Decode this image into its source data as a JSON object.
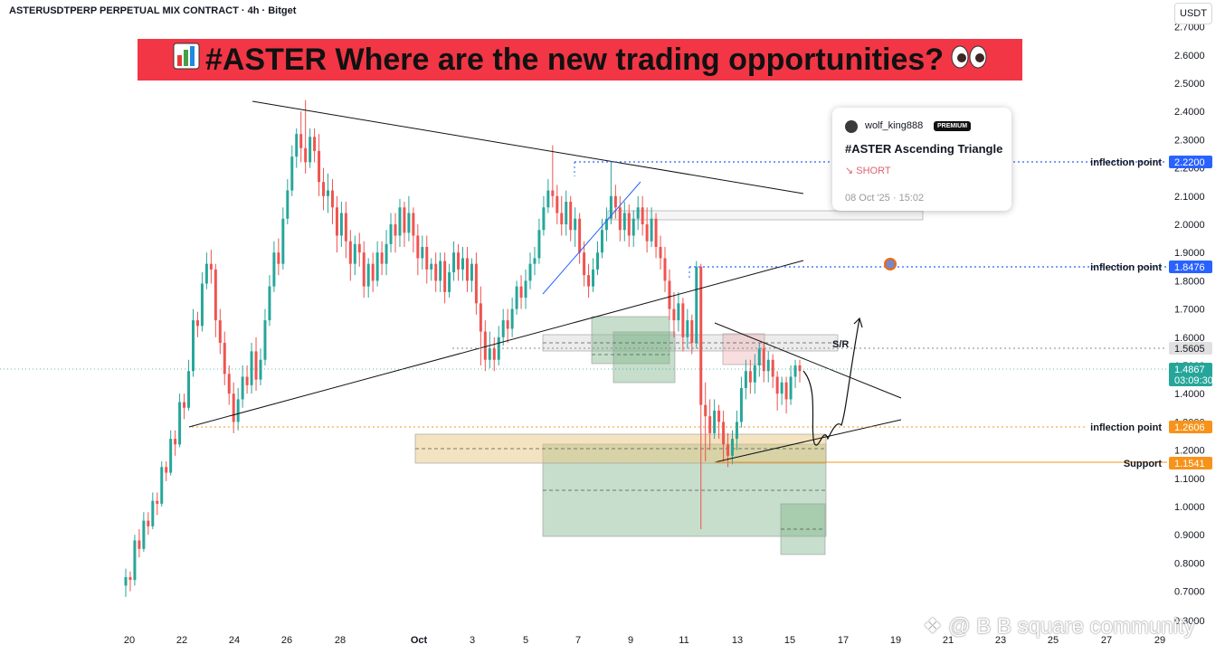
{
  "header": {
    "symbol": "ASTERUSDTPERP PERPETUAL MIX CONTRACT · 4h · Bitget",
    "currency_button": "USDT"
  },
  "banner": {
    "text": "#ASTER Where are the new trading opportunities?",
    "icon": "bar-chart-icon",
    "emoji": "eyes-emoji",
    "bg": "#f23645"
  },
  "idea_card": {
    "author": "wolf_king888",
    "badge": "PREMIUM",
    "title": "#ASTER Ascending Triangle",
    "direction": "↘ SHORT",
    "date": "08 Oct '25 · 15:02"
  },
  "watermark": "❖ @ B B square community",
  "chart_data": {
    "type": "candlestick",
    "title": "",
    "ylim": [
      0.3,
      2.7
    ],
    "yticks": [
      "0.3000",
      "0.7000",
      "0.8000",
      "0.9000",
      "1.0000",
      "1.1000",
      "1.2000",
      "1.3000",
      "1.4000",
      "1.5000",
      "1.6000",
      "1.7000",
      "1.8000",
      "1.9000",
      "2.0000",
      "2.1000",
      "2.2000",
      "2.3000",
      "2.4000",
      "2.5000",
      "2.6000",
      "2.7000"
    ],
    "xticks": [
      "20",
      "22",
      "24",
      "26",
      "28",
      "Oct",
      "3",
      "5",
      "7",
      "9",
      "11",
      "13",
      "15",
      "17",
      "19",
      "21",
      "23",
      "25",
      "27",
      "29"
    ],
    "price_levels": [
      {
        "label": "inflection point",
        "value": "2.2200",
        "color": "#2962ff"
      },
      {
        "label": "inflection point",
        "value": "1.8476",
        "color": "#2962ff"
      },
      {
        "label": "",
        "value": "1.5605",
        "color": "#e0e0e0",
        "text_color": "#131722"
      },
      {
        "label": "",
        "value": "1.4867",
        "sub": "03:09:30",
        "color": "#26a69a"
      },
      {
        "label": "inflection point",
        "value": "1.2606",
        "color": "#f7931a"
      },
      {
        "label": "Support",
        "value": "1.1541",
        "color": "#f7931a"
      }
    ],
    "annotations": [
      "S/R"
    ],
    "colors": {
      "up": "#26a69a",
      "down": "#ef5350"
    },
    "candles": [
      [
        0.72,
        0.75,
        0.68,
        0.78
      ],
      [
        0.75,
        0.74,
        0.7,
        0.77
      ],
      [
        0.74,
        0.88,
        0.72,
        0.9
      ],
      [
        0.88,
        0.85,
        0.82,
        0.92
      ],
      [
        0.85,
        0.95,
        0.84,
        0.98
      ],
      [
        0.95,
        0.93,
        0.9,
        0.98
      ],
      [
        0.93,
        1.02,
        0.92,
        1.05
      ],
      [
        1.02,
        1.01,
        0.97,
        1.05
      ],
      [
        1.01,
        1.14,
        1.0,
        1.16
      ],
      [
        1.14,
        1.12,
        1.09,
        1.16
      ],
      [
        1.12,
        1.24,
        1.11,
        1.27
      ],
      [
        1.24,
        1.22,
        1.18,
        1.27
      ],
      [
        1.22,
        1.37,
        1.21,
        1.4
      ],
      [
        1.37,
        1.35,
        1.31,
        1.4
      ],
      [
        1.35,
        1.48,
        1.34,
        1.52
      ],
      [
        1.48,
        1.66,
        1.46,
        1.7
      ],
      [
        1.66,
        1.64,
        1.6,
        1.69
      ],
      [
        1.64,
        1.79,
        1.62,
        1.83
      ],
      [
        1.79,
        1.86,
        1.77,
        1.9
      ],
      [
        1.86,
        1.84,
        1.79,
        1.91
      ],
      [
        1.84,
        1.66,
        1.6,
        1.86
      ],
      [
        1.66,
        1.58,
        1.54,
        1.7
      ],
      [
        1.58,
        1.47,
        1.43,
        1.62
      ],
      [
        1.47,
        1.4,
        1.36,
        1.5
      ],
      [
        1.4,
        1.3,
        1.26,
        1.44
      ],
      [
        1.3,
        1.38,
        1.27,
        1.42
      ],
      [
        1.38,
        1.46,
        1.35,
        1.5
      ],
      [
        1.46,
        1.43,
        1.4,
        1.5
      ],
      [
        1.43,
        1.55,
        1.4,
        1.58
      ],
      [
        1.55,
        1.45,
        1.41,
        1.6
      ],
      [
        1.45,
        1.52,
        1.43,
        1.56
      ],
      [
        1.52,
        1.66,
        1.5,
        1.7
      ],
      [
        1.66,
        1.78,
        1.64,
        1.82
      ],
      [
        1.78,
        1.9,
        1.76,
        1.94
      ],
      [
        1.9,
        1.86,
        1.82,
        1.95
      ],
      [
        1.86,
        2.02,
        1.84,
        2.06
      ],
      [
        2.02,
        2.12,
        2.0,
        2.16
      ],
      [
        2.12,
        2.24,
        2.1,
        2.28
      ],
      [
        2.24,
        2.32,
        2.2,
        2.34
      ],
      [
        2.32,
        2.27,
        2.22,
        2.4
      ],
      [
        2.27,
        2.22,
        2.18,
        2.44
      ],
      [
        2.22,
        2.31,
        2.2,
        2.34
      ],
      [
        2.31,
        2.26,
        2.22,
        2.34
      ],
      [
        2.26,
        2.15,
        2.1,
        2.32
      ],
      [
        2.15,
        2.1,
        2.05,
        2.2
      ],
      [
        2.1,
        2.12,
        2.04,
        2.18
      ],
      [
        2.12,
        2.06,
        2.0,
        2.16
      ],
      [
        2.06,
        1.96,
        1.9,
        2.1
      ],
      [
        1.96,
        2.04,
        1.92,
        2.08
      ],
      [
        2.04,
        1.94,
        1.88,
        2.08
      ],
      [
        1.94,
        1.86,
        1.8,
        1.98
      ],
      [
        1.86,
        1.93,
        1.82,
        1.96
      ],
      [
        1.93,
        1.9,
        1.85,
        1.97
      ],
      [
        1.9,
        1.78,
        1.74,
        1.94
      ],
      [
        1.78,
        1.86,
        1.74,
        1.88
      ],
      [
        1.86,
        1.8,
        1.76,
        1.9
      ],
      [
        1.8,
        1.9,
        1.78,
        1.94
      ],
      [
        1.9,
        1.86,
        1.82,
        1.94
      ],
      [
        1.86,
        1.93,
        1.82,
        1.98
      ],
      [
        1.93,
        2.0,
        1.9,
        2.04
      ],
      [
        2.0,
        1.96,
        1.9,
        2.04
      ],
      [
        1.96,
        2.06,
        1.92,
        2.09
      ],
      [
        2.06,
        1.97,
        1.92,
        2.08
      ],
      [
        1.97,
        2.04,
        1.94,
        2.1
      ],
      [
        2.04,
        1.96,
        1.9,
        2.06
      ],
      [
        1.96,
        1.88,
        1.82,
        2.0
      ],
      [
        1.88,
        1.92,
        1.84,
        1.96
      ],
      [
        1.92,
        1.84,
        1.79,
        1.96
      ],
      [
        1.84,
        1.86,
        1.8,
        1.88
      ],
      [
        1.86,
        1.8,
        1.76,
        1.9
      ],
      [
        1.8,
        1.87,
        1.76,
        1.9
      ],
      [
        1.87,
        1.76,
        1.72,
        1.9
      ],
      [
        1.76,
        1.83,
        1.74,
        1.86
      ],
      [
        1.83,
        1.9,
        1.8,
        1.94
      ],
      [
        1.9,
        1.84,
        1.8,
        1.93
      ],
      [
        1.84,
        1.88,
        1.8,
        1.92
      ],
      [
        1.88,
        1.8,
        1.76,
        1.92
      ],
      [
        1.8,
        1.86,
        1.76,
        1.88
      ],
      [
        1.86,
        1.72,
        1.68,
        1.9
      ],
      [
        1.72,
        1.62,
        1.5,
        1.78
      ],
      [
        1.62,
        1.52,
        1.48,
        1.66
      ],
      [
        1.52,
        1.56,
        1.49,
        1.62
      ],
      [
        1.56,
        1.52,
        1.48,
        1.6
      ],
      [
        1.52,
        1.6,
        1.5,
        1.64
      ],
      [
        1.6,
        1.66,
        1.57,
        1.7
      ],
      [
        1.66,
        1.63,
        1.58,
        1.7
      ],
      [
        1.63,
        1.7,
        1.6,
        1.74
      ],
      [
        1.7,
        1.78,
        1.68,
        1.8
      ],
      [
        1.78,
        1.74,
        1.7,
        1.82
      ],
      [
        1.74,
        1.8,
        1.7,
        1.84
      ],
      [
        1.8,
        1.86,
        1.77,
        1.9
      ],
      [
        1.86,
        1.88,
        1.82,
        1.92
      ],
      [
        1.88,
        1.98,
        1.86,
        2.02
      ],
      [
        1.98,
        2.06,
        1.96,
        2.1
      ],
      [
        2.06,
        2.12,
        2.04,
        2.16
      ],
      [
        2.12,
        2.1,
        2.06,
        2.28
      ],
      [
        2.1,
        2.04,
        2.0,
        2.14
      ],
      [
        2.04,
        2.0,
        1.96,
        2.1
      ],
      [
        2.0,
        2.08,
        1.96,
        2.12
      ],
      [
        2.08,
        1.98,
        1.94,
        2.1
      ],
      [
        1.98,
        2.02,
        1.92,
        2.06
      ],
      [
        2.02,
        1.9,
        1.86,
        2.04
      ],
      [
        1.9,
        1.82,
        1.78,
        1.94
      ],
      [
        1.82,
        1.78,
        1.74,
        1.86
      ],
      [
        1.78,
        1.84,
        1.76,
        1.88
      ],
      [
        1.84,
        1.9,
        1.82,
        1.94
      ],
      [
        1.9,
        1.98,
        1.88,
        2.02
      ],
      [
        1.98,
        2.02,
        1.94,
        2.06
      ],
      [
        2.02,
        2.1,
        2.0,
        2.22
      ],
      [
        2.1,
        2.06,
        2.02,
        2.14
      ],
      [
        2.06,
        1.98,
        1.94,
        2.1
      ],
      [
        1.98,
        2.04,
        1.94,
        2.08
      ],
      [
        2.04,
        1.96,
        1.92,
        2.07
      ],
      [
        1.96,
        2.02,
        1.92,
        2.05
      ],
      [
        2.02,
        2.06,
        1.98,
        2.1
      ],
      [
        2.06,
        2.0,
        1.96,
        2.1
      ],
      [
        2.0,
        1.94,
        1.9,
        2.06
      ],
      [
        1.94,
        2.02,
        1.92,
        2.06
      ],
      [
        2.02,
        1.92,
        1.88,
        2.04
      ],
      [
        1.92,
        1.88,
        1.84,
        1.96
      ],
      [
        1.88,
        1.8,
        1.76,
        1.92
      ],
      [
        1.8,
        1.7,
        1.66,
        1.84
      ],
      [
        1.7,
        1.66,
        1.6,
        1.76
      ],
      [
        1.66,
        1.72,
        1.62,
        1.76
      ],
      [
        1.72,
        1.6,
        1.55,
        1.74
      ],
      [
        1.6,
        1.66,
        1.56,
        1.7
      ],
      [
        1.66,
        1.58,
        1.54,
        1.68
      ],
      [
        1.58,
        1.85,
        1.56,
        1.87
      ],
      [
        1.85,
        1.36,
        0.92,
        1.86
      ],
      [
        1.36,
        1.32,
        1.16,
        1.44
      ],
      [
        1.32,
        1.26,
        1.2,
        1.38
      ],
      [
        1.26,
        1.34,
        1.24,
        1.38
      ],
      [
        1.34,
        1.3,
        1.24,
        1.36
      ],
      [
        1.3,
        1.22,
        1.16,
        1.34
      ],
      [
        1.22,
        1.18,
        1.14,
        1.26
      ],
      [
        1.18,
        1.24,
        1.15,
        1.27
      ],
      [
        1.24,
        1.3,
        1.2,
        1.34
      ],
      [
        1.3,
        1.42,
        1.28,
        1.46
      ],
      [
        1.42,
        1.48,
        1.38,
        1.52
      ],
      [
        1.48,
        1.44,
        1.4,
        1.52
      ],
      [
        1.44,
        1.5,
        1.4,
        1.54
      ],
      [
        1.5,
        1.56,
        1.46,
        1.58
      ],
      [
        1.56,
        1.48,
        1.44,
        1.58
      ],
      [
        1.48,
        1.52,
        1.44,
        1.55
      ],
      [
        1.52,
        1.46,
        1.42,
        1.54
      ],
      [
        1.46,
        1.4,
        1.34,
        1.48
      ],
      [
        1.4,
        1.44,
        1.36,
        1.46
      ],
      [
        1.44,
        1.38,
        1.33,
        1.46
      ],
      [
        1.38,
        1.46,
        1.36,
        1.5
      ],
      [
        1.46,
        1.5,
        1.42,
        1.52
      ],
      [
        1.5,
        1.48,
        1.44,
        1.52
      ]
    ]
  }
}
